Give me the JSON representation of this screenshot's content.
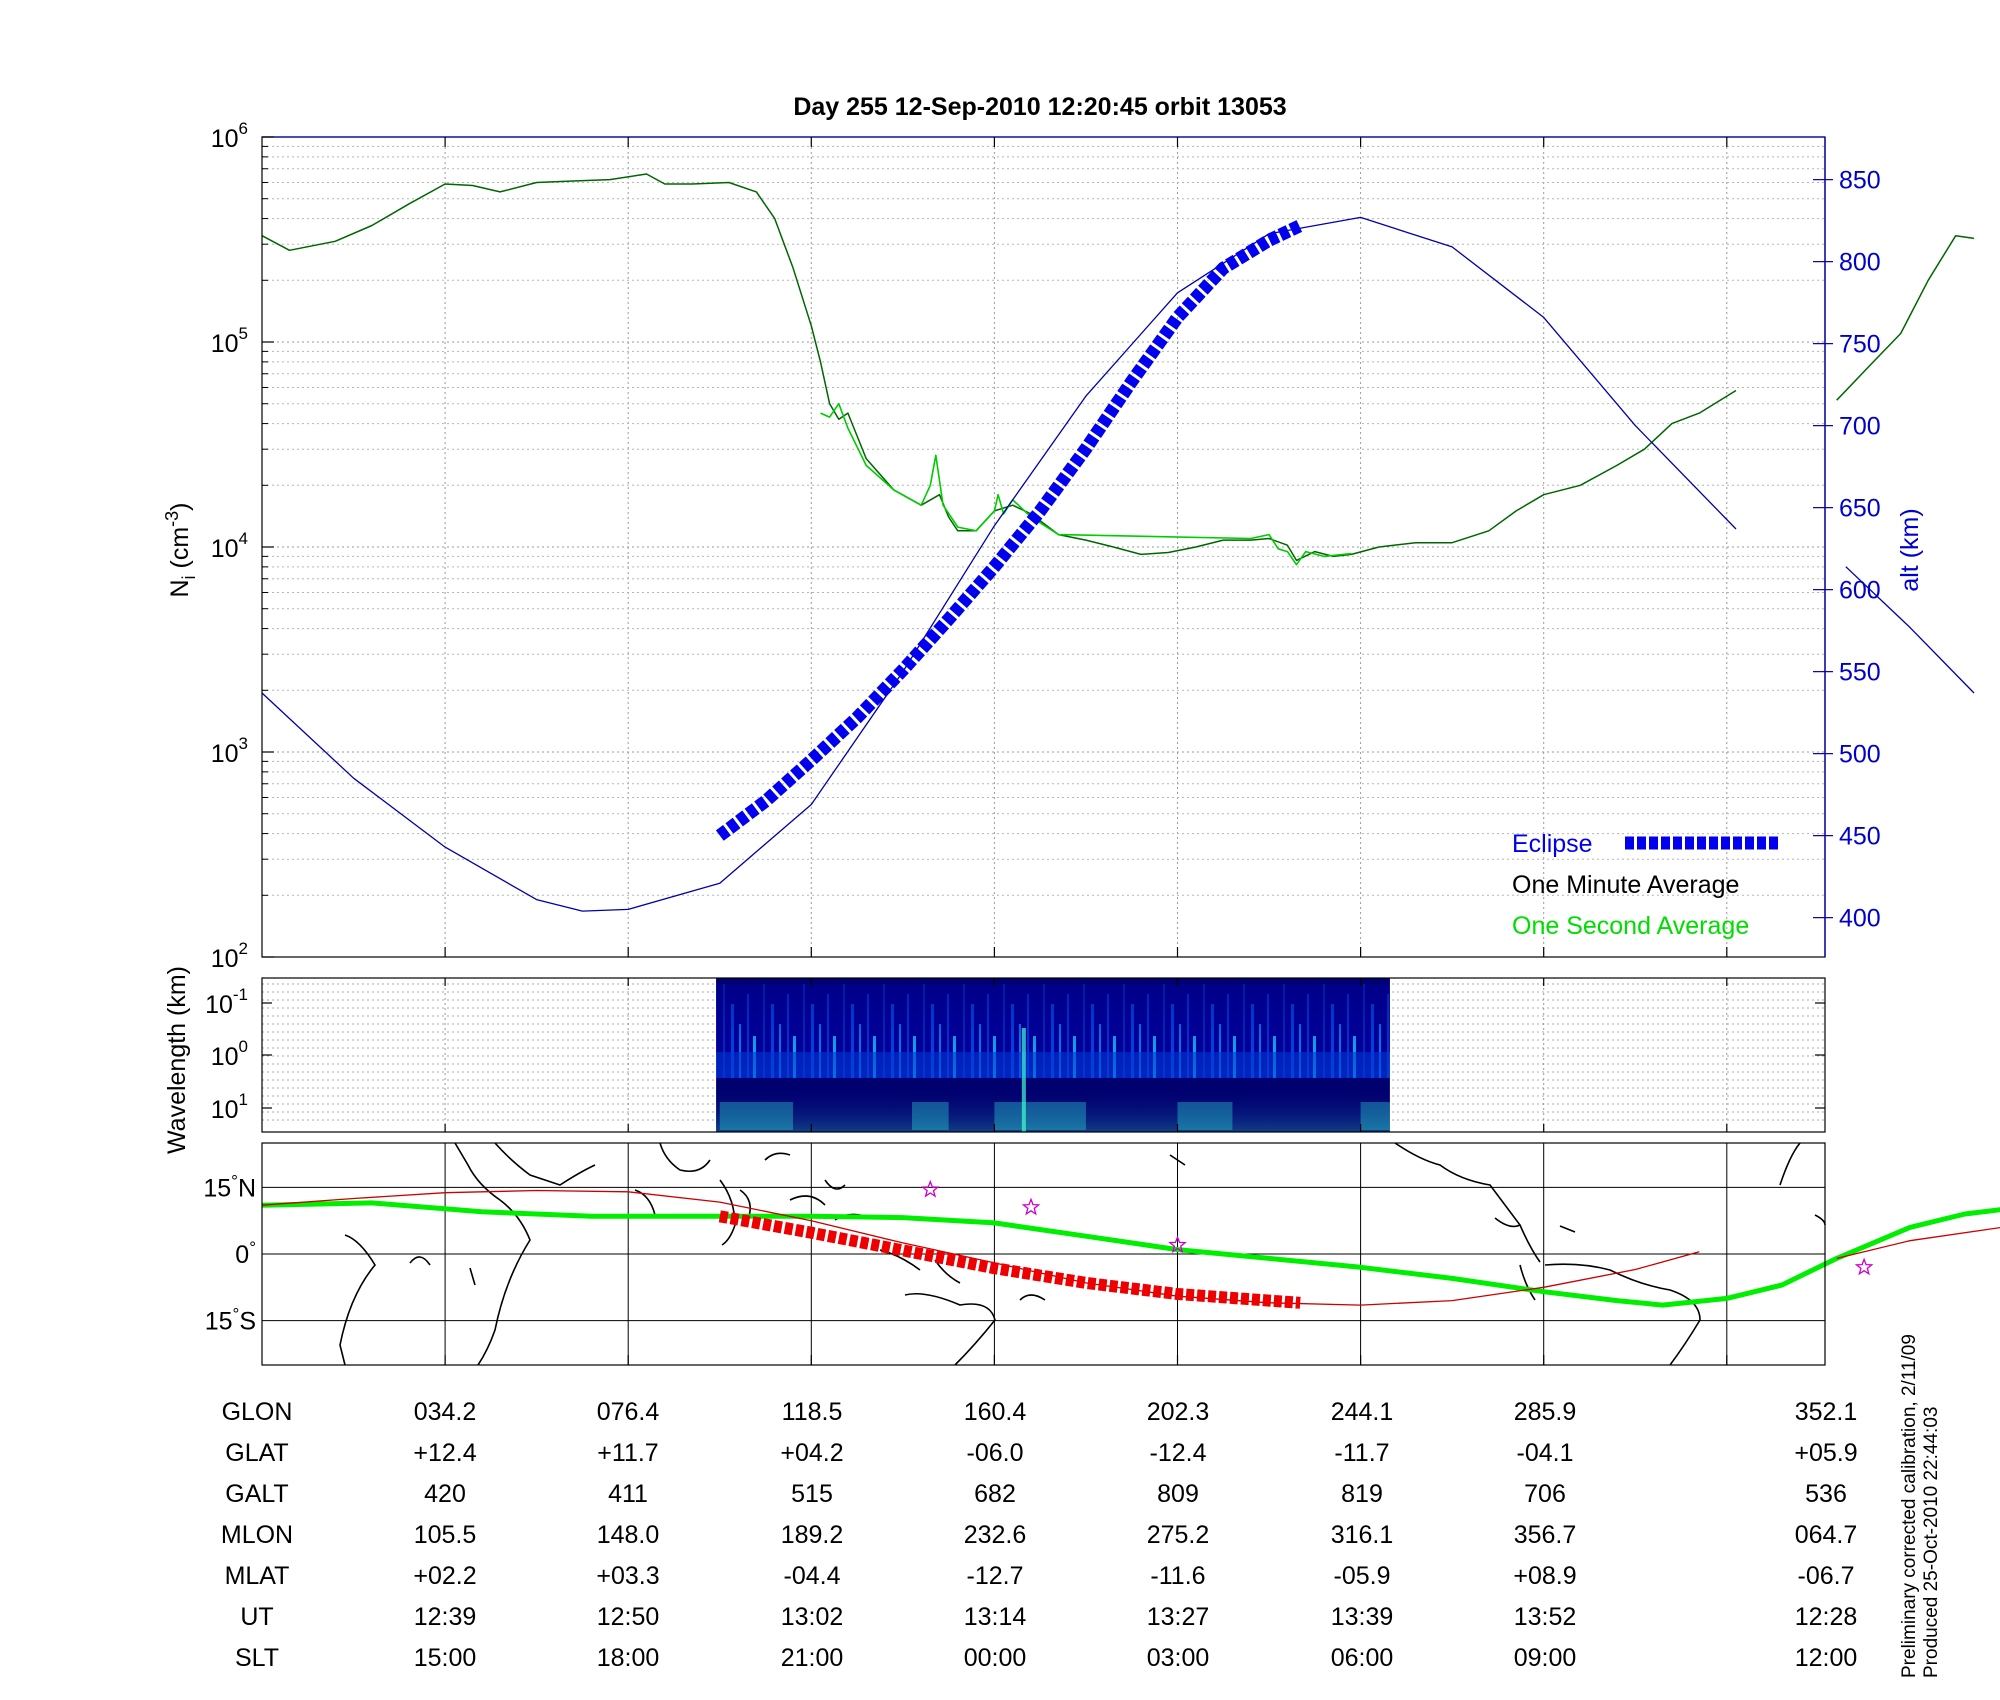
{
  "chart_data": [
    {
      "type": "line",
      "title": "Day 255  12-Sep-2010 12:20:45   orbit 13053",
      "ylabel_main": "N",
      "ylabel_sub": "i",
      "ylabel_unit_open": " (cm",
      "ylabel_unit_exp": "-3",
      "ylabel_unit_close": ")",
      "y_scale": "log",
      "ylim": [
        100,
        1000000
      ],
      "y_ticks": [
        {
          "base": "10",
          "exp": "2",
          "value": 100
        },
        {
          "base": "10",
          "exp": "3",
          "value": 1000
        },
        {
          "base": "10",
          "exp": "4",
          "value": 10000
        },
        {
          "base": "10",
          "exp": "5",
          "value": 100000
        },
        {
          "base": "10",
          "exp": "6",
          "value": 1000000
        }
      ],
      "y2label": "alt (km)",
      "y2lim": [
        376,
        876
      ],
      "y2_ticks": [
        "400",
        "450",
        "500",
        "550",
        "600",
        "650",
        "700",
        "750",
        "800",
        "850"
      ],
      "grid": true,
      "legend_position": "bottom-right",
      "legend": [
        {
          "name": "Eclipse",
          "color": "#0000ee"
        },
        {
          "name": "One Minute Average",
          "color": "#000000"
        },
        {
          "name": "One Second Average",
          "color": "#00dd00"
        }
      ],
      "series": [
        {
          "name": "One Minute Average",
          "color": "#006600",
          "segments": [
            [
              [
                0,
                330000
              ],
              [
                0.15,
                280000
              ],
              [
                0.4,
                310000
              ],
              [
                0.6,
                370000
              ],
              [
                0.8,
                470000
              ],
              [
                1.0,
                590000
              ],
              [
                1.15,
                580000
              ],
              [
                1.3,
                540000
              ],
              [
                1.5,
                600000
              ],
              [
                1.7,
                610000
              ],
              [
                1.9,
                620000
              ],
              [
                2.1,
                660000
              ],
              [
                2.2,
                590000
              ],
              [
                2.35,
                590000
              ],
              [
                2.55,
                600000
              ],
              [
                2.7,
                540000
              ],
              [
                2.8,
                400000
              ],
              [
                2.9,
                230000
              ],
              [
                3.0,
                120000
              ],
              [
                3.05,
                80000
              ],
              [
                3.1,
                50000
              ],
              [
                3.15,
                42000
              ],
              [
                3.2,
                45000
              ],
              [
                3.3,
                27000
              ],
              [
                3.45,
                19000
              ],
              [
                3.6,
                16000
              ],
              [
                3.7,
                18000
              ],
              [
                3.75,
                14000
              ],
              [
                3.8,
                12000
              ],
              [
                3.9,
                12000
              ],
              [
                4.0,
                15000
              ],
              [
                4.1,
                16000
              ],
              [
                4.2,
                14500
              ],
              [
                4.35,
                11500
              ],
              [
                4.5,
                10800
              ],
              [
                4.65,
                10000
              ],
              [
                4.8,
                9200
              ],
              [
                4.95,
                9400
              ],
              [
                5.1,
                10000
              ],
              [
                5.25,
                10800
              ],
              [
                5.4,
                10800
              ],
              [
                5.5,
                11000
              ],
              [
                5.6,
                10200
              ],
              [
                5.65,
                8600
              ],
              [
                5.75,
                9500
              ],
              [
                5.85,
                9000
              ],
              [
                5.95,
                9200
              ],
              [
                6.1,
                10000
              ],
              [
                6.3,
                10500
              ],
              [
                6.5,
                10500
              ],
              [
                6.7,
                12000
              ],
              [
                6.85,
                15000
              ],
              [
                7.0,
                18000
              ],
              [
                7.2,
                20000
              ],
              [
                7.4,
                25000
              ],
              [
                7.55,
                30000
              ],
              [
                7.7,
                40000
              ],
              [
                7.85,
                45000
              ],
              [
                8.05,
                58000
              ]
            ],
            [
              [
                8.6,
                52000
              ],
              [
                8.8,
                80000
              ],
              [
                8.95,
                110000
              ],
              [
                9.1,
                200000
              ],
              [
                9.25,
                330000
              ],
              [
                9.35,
                320000
              ]
            ]
          ]
        },
        {
          "name": "One Second Average",
          "color": "#00cc00",
          "segments": [
            [
              [
                3.05,
                45000
              ],
              [
                3.1,
                43000
              ],
              [
                3.15,
                50000
              ],
              [
                3.2,
                38000
              ],
              [
                3.3,
                25000
              ],
              [
                3.45,
                19000
              ],
              [
                3.6,
                16000
              ],
              [
                3.65,
                20000
              ],
              [
                3.68,
                28000
              ],
              [
                3.72,
                16000
              ],
              [
                3.8,
                12500
              ],
              [
                3.9,
                12000
              ],
              [
                4.0,
                15000
              ],
              [
                4.02,
                18000
              ],
              [
                4.05,
                14500
              ],
              [
                4.1,
                17000
              ],
              [
                4.2,
                14000
              ],
              [
                4.35,
                11500
              ],
              [
                5.4,
                11000
              ],
              [
                5.5,
                11500
              ],
              [
                5.55,
                9800
              ],
              [
                5.6,
                9500
              ],
              [
                5.65,
                8200
              ],
              [
                5.7,
                9500
              ],
              [
                5.8,
                9000
              ],
              [
                5.95,
                9300
              ]
            ]
          ]
        },
        {
          "name": "alt (km)",
          "axis": "right",
          "color": "#0000aa",
          "segments": [
            [
              [
                0,
                537
              ],
              [
                0.5,
                485
              ],
              [
                1.0,
                443
              ],
              [
                1.5,
                411
              ],
              [
                1.75,
                404
              ],
              [
                2.0,
                405
              ],
              [
                2.5,
                421
              ],
              [
                3.0,
                469
              ],
              [
                3.5,
                550
              ],
              [
                4.0,
                639
              ],
              [
                4.5,
                718
              ],
              [
                5.0,
                781
              ],
              [
                5.5,
                817
              ],
              [
                6.0,
                827
              ],
              [
                6.5,
                809
              ],
              [
                7.0,
                766
              ],
              [
                7.5,
                700
              ],
              [
                8.05,
                637
              ]
            ],
            [
              [
                8.65,
                614
              ],
              [
                9.0,
                577
              ],
              [
                9.35,
                537
              ]
            ]
          ]
        },
        {
          "name": "Eclipse",
          "axis": "right",
          "color": "#0000ee",
          "segments": [
            [
              [
                2.5,
                450
              ],
              [
                2.75,
                471
              ],
              [
                3.0,
                496
              ],
              [
                3.25,
                522
              ],
              [
                3.5,
                551
              ],
              [
                3.75,
                582
              ],
              [
                4.0,
                614
              ],
              [
                4.25,
                648
              ],
              [
                4.5,
                686
              ],
              [
                4.75,
                727
              ],
              [
                5.0,
                766
              ],
              [
                5.25,
                796
              ],
              [
                5.5,
                813
              ],
              [
                5.67,
                822
              ]
            ]
          ]
        }
      ]
    },
    {
      "type": "heatmap",
      "ylabel": "Wavelength (km)",
      "y_scale": "log",
      "y_ticks": [
        {
          "base": "10",
          "exp": "-1"
        },
        {
          "base": "10",
          "exp": "0"
        },
        {
          "base": "10",
          "exp": "1"
        }
      ],
      "data_extent_x": [
        2.48,
        6.16
      ],
      "colormap": [
        "#00008b",
        "#0000ff",
        "#00a0ff",
        "#40ffd0"
      ]
    },
    {
      "type": "map",
      "y_ticks": [
        {
          "value": "15",
          "unit": "°",
          "hemi": "N"
        },
        {
          "value": "0",
          "unit": "°",
          "hemi": ""
        },
        {
          "value": "15",
          "unit": "°",
          "hemi": "S"
        }
      ],
      "ylim": [
        -25,
        25
      ],
      "series": [
        {
          "name": "magnetic equator",
          "color": "#00ee00",
          "points": [
            [
              0,
              11
            ],
            [
              0.6,
              11.5
            ],
            [
              1.2,
              9.5
            ],
            [
              1.8,
              8.5
            ],
            [
              2.4,
              8.5
            ],
            [
              3.0,
              8.5
            ],
            [
              3.5,
              8.2
            ],
            [
              4.0,
              7
            ],
            [
              4.5,
              4
            ],
            [
              5.0,
              1
            ],
            [
              5.5,
              -1
            ],
            [
              6.0,
              -3
            ],
            [
              6.5,
              -5.5
            ],
            [
              7.0,
              -8.5
            ],
            [
              7.4,
              -10.5
            ],
            [
              7.65,
              -11.5
            ],
            [
              8.0,
              -10
            ],
            [
              8.3,
              -7
            ],
            [
              8.6,
              -1
            ],
            [
              9.0,
              6
            ],
            [
              9.3,
              9
            ],
            [
              9.5,
              10
            ]
          ]
        },
        {
          "name": "orbit track",
          "color": "#cc0000",
          "points": [
            [
              0,
              11
            ],
            [
              0.5,
              12.5
            ],
            [
              1.0,
              13.8
            ],
            [
              1.5,
              14.3
            ],
            [
              2.0,
              14
            ],
            [
              2.5,
              11.7
            ],
            [
              3.0,
              7.5
            ],
            [
              3.5,
              2.5
            ],
            [
              4.0,
              -2
            ],
            [
              4.5,
              -6.5
            ],
            [
              5.0,
              -9.5
            ],
            [
              5.5,
              -11
            ],
            [
              6.0,
              -11.5
            ],
            [
              6.5,
              -10.5
            ],
            [
              7.0,
              -7.5
            ],
            [
              7.5,
              -3.5
            ],
            [
              7.85,
              0.5
            ]
          ],
          "segment2": [
            [
              8.6,
              -1
            ],
            [
              9.0,
              3
            ],
            [
              9.5,
              6
            ]
          ]
        },
        {
          "name": "eclipse track",
          "color": "#ee0000",
          "points": [
            [
              2.5,
              8.5
            ],
            [
              3.0,
              4.8
            ],
            [
              3.5,
              0.8
            ],
            [
              4.0,
              -3.2
            ],
            [
              4.5,
              -6.5
            ],
            [
              5.0,
              -9.0
            ],
            [
              5.5,
              -10.5
            ],
            [
              5.67,
              -11
            ]
          ]
        }
      ],
      "stars": [
        [
          3.65,
          14.5
        ],
        [
          4.2,
          10.5
        ],
        [
          5.0,
          2
        ],
        [
          8.75,
          -3
        ]
      ]
    }
  ],
  "table": {
    "rows": [
      {
        "label": "GLON",
        "values": [
          "034.2",
          "076.4",
          "118.5",
          "160.4",
          "202.3",
          "244.1",
          "285.9",
          "352.1"
        ]
      },
      {
        "label": "GLAT",
        "values": [
          "+12.4",
          "+11.7",
          "+04.2",
          "-06.0",
          "-12.4",
          "-11.7",
          "-04.1",
          "+05.9"
        ]
      },
      {
        "label": "GALT",
        "values": [
          "420",
          "411",
          "515",
          "682",
          "809",
          "819",
          "706",
          "536"
        ]
      },
      {
        "label": "MLON",
        "values": [
          "105.5",
          "148.0",
          "189.2",
          "232.6",
          "275.2",
          "316.1",
          "356.7",
          "064.7"
        ]
      },
      {
        "label": "MLAT",
        "values": [
          "+02.2",
          "+03.3",
          "-04.4",
          "-12.7",
          "-11.6",
          "-05.9",
          "+08.9",
          "-06.7"
        ]
      },
      {
        "label": "UT",
        "values": [
          "12:39",
          "12:50",
          "13:02",
          "13:14",
          "13:27",
          "13:39",
          "13:52",
          "12:28"
        ]
      },
      {
        "label": "SLT",
        "values": [
          "15:00",
          "18:00",
          "21:00",
          "00:00",
          "03:00",
          "06:00",
          "09:00",
          "12:00"
        ]
      }
    ]
  },
  "footnote": {
    "line1": "Preliminary corrected calibration, 2/11/09",
    "line2": "Produced 25-Oct-2010 22:44:03"
  }
}
